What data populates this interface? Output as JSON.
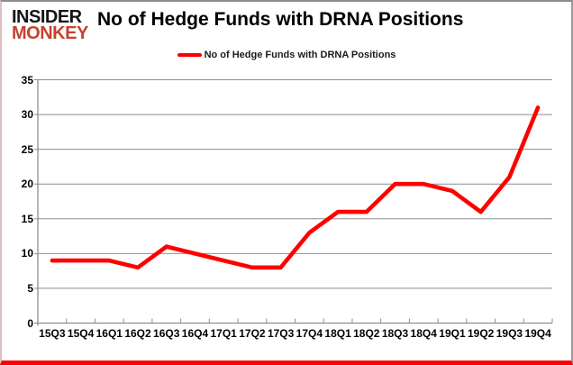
{
  "logo": {
    "line1": "INSIDER",
    "line2": "MONKEY"
  },
  "header": {
    "title": "No of Hedge Funds with DRNA Positions"
  },
  "legend": {
    "label": "No of Hedge Funds with DRNA Positions"
  },
  "colors": {
    "series": "#ff0000",
    "grid": "#8e8e8e",
    "axis": "#8e8e8e",
    "logo_accent": "#c5432c",
    "frame_bottom": "#fb0007",
    "text": "#000000"
  },
  "chart_data": {
    "type": "line",
    "title": "No of Hedge Funds with DRNA Positions",
    "categories": [
      "15Q3",
      "15Q4",
      "16Q1",
      "16Q2",
      "16Q3",
      "16Q4",
      "17Q1",
      "17Q2",
      "17Q3",
      "17Q4",
      "18Q1",
      "18Q2",
      "18Q3",
      "18Q4",
      "19Q1",
      "19Q2",
      "19Q3",
      "19Q4"
    ],
    "series": [
      {
        "name": "No of Hedge Funds with DRNA Positions",
        "color": "#ff0000",
        "values": [
          9,
          9,
          9,
          8,
          11,
          10,
          9,
          8,
          8,
          13,
          16,
          16,
          20,
          20,
          19,
          16,
          21,
          31
        ]
      }
    ],
    "xlabel": "",
    "ylabel": "",
    "ylim": [
      0,
      35
    ],
    "y_ticks": [
      0,
      5,
      10,
      15,
      20,
      25,
      30,
      35
    ],
    "grid": "horizontal",
    "legend_position": "top-center"
  }
}
